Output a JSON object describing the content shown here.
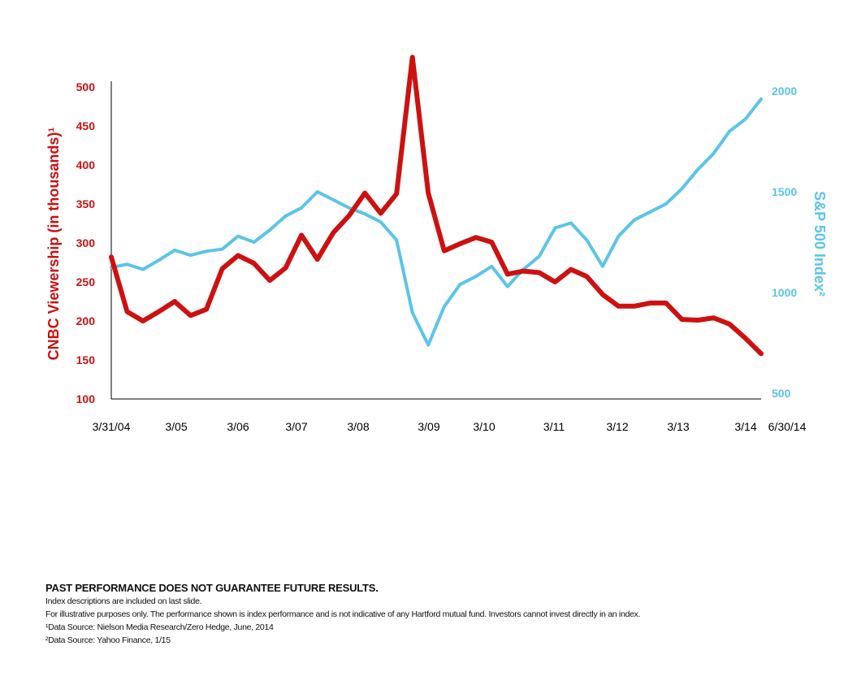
{
  "chart_data": {
    "type": "line",
    "left_axis": {
      "label": "CNBC Viewership (in thousands)¹",
      "ticks": [
        100,
        150,
        200,
        250,
        300,
        350,
        400,
        450,
        500
      ],
      "ylim": [
        100,
        500
      ],
      "color": "#cc1111"
    },
    "right_axis": {
      "label": "S&P 500 Index²",
      "ticks": [
        500,
        1000,
        1500,
        2000
      ],
      "ylim": [
        500,
        2000
      ],
      "color": "#5bc4e8"
    },
    "x_ticks": [
      "3/31/04",
      "3/05",
      "3/06",
      "3/07",
      "3/08",
      "3/09",
      "3/10",
      "3/11",
      "3/12",
      "3/13",
      "3/14",
      "6/30/14"
    ],
    "series": [
      {
        "axis": "left",
        "color": "#cc1111",
        "points": [
          [
            2004.25,
            282
          ],
          [
            2004.5,
            212
          ],
          [
            2004.75,
            200
          ],
          [
            2005.0,
            212
          ],
          [
            2005.25,
            225
          ],
          [
            2005.5,
            207
          ],
          [
            2005.75,
            215
          ],
          [
            2006.0,
            267
          ],
          [
            2006.25,
            284
          ],
          [
            2006.5,
            274
          ],
          [
            2006.75,
            252
          ],
          [
            2007.0,
            268
          ],
          [
            2007.25,
            310
          ],
          [
            2007.5,
            279
          ],
          [
            2007.75,
            313
          ],
          [
            2008.0,
            335
          ],
          [
            2008.25,
            364
          ],
          [
            2008.5,
            338
          ],
          [
            2008.75,
            363
          ],
          [
            2009.0,
            538
          ],
          [
            2009.25,
            364
          ],
          [
            2009.5,
            290
          ],
          [
            2009.75,
            299
          ],
          [
            2010.0,
            307
          ],
          [
            2010.25,
            301
          ],
          [
            2010.5,
            260
          ],
          [
            2010.75,
            264
          ],
          [
            2011.0,
            262
          ],
          [
            2011.25,
            250
          ],
          [
            2011.5,
            266
          ],
          [
            2011.75,
            257
          ],
          [
            2012.0,
            234
          ],
          [
            2012.25,
            219
          ],
          [
            2012.5,
            219
          ],
          [
            2012.75,
            223
          ],
          [
            2013.0,
            223
          ],
          [
            2013.25,
            202
          ],
          [
            2013.5,
            201
          ],
          [
            2013.75,
            204
          ],
          [
            2014.0,
            196
          ],
          [
            2014.25,
            178
          ],
          [
            2014.5,
            158
          ]
        ]
      },
      {
        "axis": "right",
        "color": "#5bc4e8",
        "points": [
          [
            2004.25,
            1125
          ],
          [
            2004.5,
            1140
          ],
          [
            2004.75,
            1115
          ],
          [
            2005.0,
            1160
          ],
          [
            2005.25,
            1210
          ],
          [
            2005.5,
            1185
          ],
          [
            2005.75,
            1205
          ],
          [
            2006.0,
            1215
          ],
          [
            2006.25,
            1280
          ],
          [
            2006.5,
            1250
          ],
          [
            2006.75,
            1310
          ],
          [
            2007.0,
            1380
          ],
          [
            2007.25,
            1420
          ],
          [
            2007.5,
            1500
          ],
          [
            2007.75,
            1460
          ],
          [
            2008.0,
            1420
          ],
          [
            2008.25,
            1390
          ],
          [
            2008.5,
            1350
          ],
          [
            2008.75,
            1260
          ],
          [
            2009.0,
            900
          ],
          [
            2009.25,
            740
          ],
          [
            2009.5,
            930
          ],
          [
            2009.75,
            1040
          ],
          [
            2010.0,
            1080
          ],
          [
            2010.25,
            1130
          ],
          [
            2010.5,
            1030
          ],
          [
            2010.75,
            1115
          ],
          [
            2011.0,
            1180
          ],
          [
            2011.25,
            1320
          ],
          [
            2011.5,
            1345
          ],
          [
            2011.75,
            1260
          ],
          [
            2012.0,
            1130
          ],
          [
            2012.25,
            1280
          ],
          [
            2012.5,
            1360
          ],
          [
            2012.75,
            1400
          ],
          [
            2013.0,
            1440
          ],
          [
            2013.25,
            1515
          ],
          [
            2013.5,
            1610
          ],
          [
            2013.75,
            1690
          ],
          [
            2014.0,
            1800
          ],
          [
            2014.25,
            1860
          ],
          [
            2014.5,
            1960
          ]
        ]
      }
    ]
  },
  "footnotes": {
    "heading": "PAST PERFORMANCE DOES NOT GUARANTEE FUTURE RESULTS.",
    "line1": "Index descriptions are included on last slide.",
    "line2": "For illustrative purposes only. The performance shown is index performance and is not indicative of any Hartford mutual fund. Investors cannot invest directly in an index.",
    "source1": "¹Data Source: Nielson Media Research/Zero Hedge, June, 2014",
    "source2": "²Data Source: Yahoo Finance, 1/15"
  }
}
